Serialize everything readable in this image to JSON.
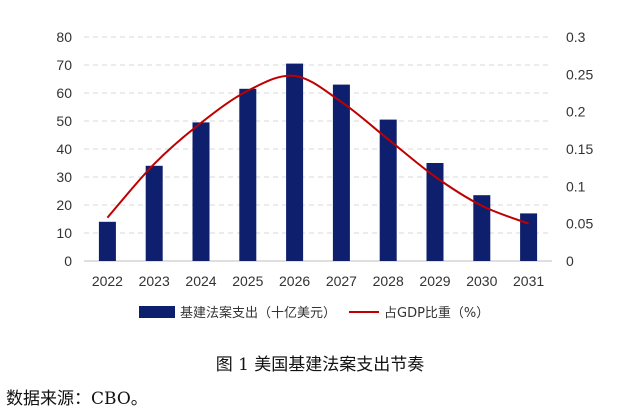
{
  "chart_data": {
    "type": "bar",
    "categories": [
      "2022",
      "2023",
      "2024",
      "2025",
      "2026",
      "2027",
      "2028",
      "2029",
      "2030",
      "2031"
    ],
    "series": [
      {
        "name": "基建法案支出（十亿美元）",
        "type": "bar",
        "axis": "left",
        "color": "#0d1f6d",
        "values": [
          14,
          34,
          49.5,
          61.5,
          70.5,
          63,
          50.5,
          35,
          23.5,
          17
        ]
      },
      {
        "name": "占GDP比重（%）",
        "type": "line",
        "axis": "right",
        "color": "#c00000",
        "values": [
          0.058,
          0.13,
          0.185,
          0.228,
          0.248,
          0.213,
          0.163,
          0.113,
          0.074,
          0.05
        ]
      }
    ],
    "y_left": {
      "min": 0,
      "max": 80,
      "ticks": [
        "0",
        "10",
        "20",
        "30",
        "40",
        "50",
        "60",
        "70",
        "80"
      ]
    },
    "y_right": {
      "min": 0,
      "max": 0.3,
      "ticks": [
        "0",
        "0.05",
        "0.1",
        "0.15",
        "0.2",
        "0.25",
        "0.3"
      ]
    },
    "grid": "horizontal dashed",
    "legend_position": "bottom"
  },
  "caption": "图 1  美国基建法案支出节奏",
  "source": "数据来源：CBO。"
}
